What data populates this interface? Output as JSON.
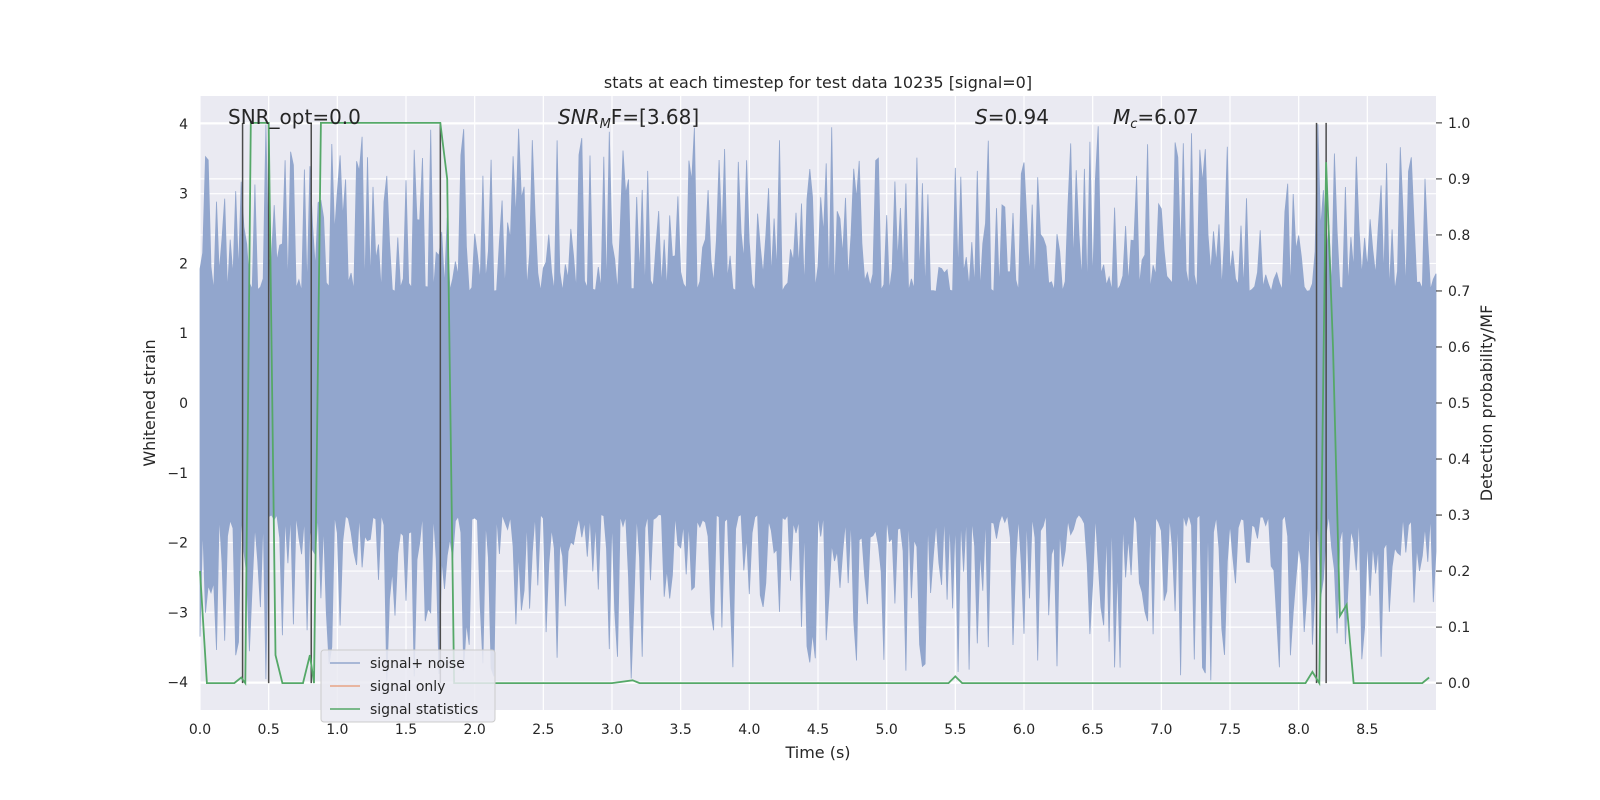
{
  "chart_data": {
    "type": "line",
    "title": "stats at each timestep for test data 10235 [signal=0]",
    "xlabel": "Time (s)",
    "ylabel": "Whitened strain",
    "y2label": "Detection probability/MF",
    "xlim": [
      0.0,
      9.0
    ],
    "ylim": [
      -4.4,
      4.4
    ],
    "y2lim": [
      -0.048,
      1.048
    ],
    "xticks": [
      0.0,
      0.5,
      1.0,
      1.5,
      2.0,
      2.5,
      3.0,
      3.5,
      4.0,
      4.5,
      5.0,
      5.5,
      6.0,
      6.5,
      7.0,
      7.5,
      8.0,
      8.5
    ],
    "xtick_labels": [
      "0.0",
      "0.5",
      "1.0",
      "1.5",
      "2.0",
      "2.5",
      "3.0",
      "3.5",
      "4.0",
      "4.5",
      "5.0",
      "5.5",
      "6.0",
      "6.5",
      "7.0",
      "7.5",
      "8.0",
      "8.5"
    ],
    "yticks": [
      -4,
      -3,
      -2,
      -1,
      0,
      1,
      2,
      3,
      4
    ],
    "ytick_labels": [
      "−4",
      "−3",
      "−2",
      "−1",
      "0",
      "1",
      "2",
      "3",
      "4"
    ],
    "y2ticks": [
      0.0,
      0.1,
      0.2,
      0.3,
      0.4,
      0.5,
      0.6,
      0.7,
      0.8,
      0.9,
      1.0
    ],
    "y2tick_labels": [
      "0.0",
      "0.1",
      "0.2",
      "0.3",
      "0.4",
      "0.5",
      "0.6",
      "0.7",
      "0.8",
      "0.9",
      "1.0"
    ],
    "grid": true,
    "legend_position": "lower-left",
    "annotations": {
      "snr_opt": "SNR_opt=0.0",
      "snr_mf_base": "SNR",
      "snr_mf_sub": "M",
      "snr_mf_rest": "F=[3.68]",
      "s_sym": "S",
      "s_val": "=0.94",
      "mc_sym": "M",
      "mc_sub": "c",
      "mc_val": "=6.07"
    },
    "series": [
      {
        "name": "signal+ noise",
        "color": "#92a6cd",
        "axis": "left",
        "envelope_samples": 450,
        "typical_amplitude": 1.6,
        "peak_amplitude": 4.0
      },
      {
        "name": "signal only",
        "color": "#e8a384",
        "axis": "left",
        "x": [],
        "y": []
      },
      {
        "name": "signal statistics",
        "color": "#55a868",
        "axis": "right",
        "x": [
          0.0,
          0.05,
          0.1,
          0.15,
          0.2,
          0.25,
          0.3,
          0.33,
          0.37,
          0.4,
          0.45,
          0.5,
          0.55,
          0.6,
          0.65,
          0.7,
          0.75,
          0.8,
          0.83,
          0.88,
          0.9,
          1.0,
          1.2,
          1.4,
          1.6,
          1.75,
          1.8,
          1.85,
          1.9,
          2.0,
          2.5,
          3.0,
          3.15,
          3.2,
          3.3,
          3.5,
          4.0,
          4.5,
          5.0,
          5.45,
          5.5,
          5.55,
          6.0,
          6.5,
          7.0,
          7.5,
          8.0,
          8.05,
          8.1,
          8.15,
          8.2,
          8.25,
          8.3,
          8.35,
          8.4,
          8.45,
          8.5,
          8.9,
          8.95
        ],
        "y": [
          0.2,
          0.0,
          0.0,
          0.0,
          0.0,
          0.0,
          0.01,
          0.0,
          1.0,
          1.0,
          1.0,
          1.0,
          0.05,
          0.0,
          0.0,
          0.0,
          0.0,
          0.05,
          0.0,
          1.0,
          1.0,
          1.0,
          1.0,
          1.0,
          1.0,
          1.0,
          0.9,
          0.0,
          0.0,
          0.0,
          0.0,
          0.0,
          0.005,
          0.0,
          0.0,
          0.0,
          0.0,
          0.0,
          0.0,
          0.0,
          0.012,
          0.0,
          0.0,
          0.0,
          0.0,
          0.0,
          0.0,
          0.0,
          0.02,
          0.0,
          0.93,
          0.6,
          0.12,
          0.14,
          0.0,
          0.0,
          0.0,
          0.0,
          0.01
        ]
      }
    ],
    "vlines": {
      "color": "#4c4c4c",
      "x": [
        0.31,
        0.5,
        0.81,
        1.75,
        8.13,
        8.2
      ],
      "y_from": [
        0.0,
        0.0,
        0.0,
        0.0,
        0.0,
        0.0
      ],
      "y_to": [
        1.0,
        1.0,
        1.0,
        1.0,
        1.0,
        1.0
      ]
    }
  }
}
